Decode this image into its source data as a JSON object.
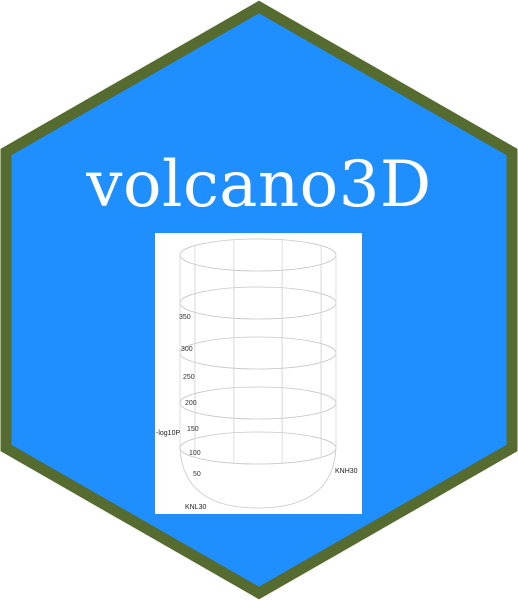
{
  "logo": {
    "title": "volcano3D",
    "colors": {
      "hex_fill": "#1f8fff",
      "hex_border": "#556b2f",
      "title": "#ffffff"
    }
  },
  "plot": {
    "y_ticks": [
      "350",
      "300",
      "250",
      "200",
      "150",
      "100",
      "50"
    ],
    "y_label": "-log10P",
    "axis_labels": {
      "right": "KNH30",
      "left": "KNL30"
    },
    "cloud_colors": {
      "center": "#a0a0a0",
      "cyan": "#11e9ef",
      "purple": "#9b20e8",
      "red": "#ee1111",
      "yellow": "#f0b400",
      "green": "#22b11a",
      "blue": "#2040ff",
      "navy": "#1b1b80"
    }
  }
}
